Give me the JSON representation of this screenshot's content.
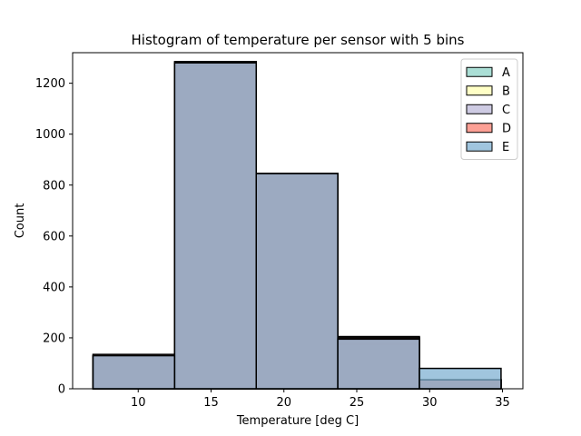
{
  "chart_data": {
    "type": "histogram",
    "title": "Histogram of temperature per sensor with 5 bins",
    "xlabel": "Temperature [deg C]",
    "ylabel": "Count",
    "xlim": [
      5.5,
      36.4
    ],
    "ylim": [
      0,
      1320
    ],
    "xticks": [
      10,
      15,
      20,
      25,
      30,
      35
    ],
    "yticks": [
      0,
      200,
      400,
      600,
      800,
      1000,
      1200
    ],
    "bin_edges": [
      6.9,
      12.5,
      18.1,
      23.7,
      29.3,
      34.9
    ],
    "grid": false,
    "legend_position": "top-right",
    "series": [
      {
        "name": "A",
        "color": "#8dd3c7",
        "values": [
          125,
          1255,
          845,
          175,
          35
        ]
      },
      {
        "name": "B",
        "color": "#ffffb3",
        "values": [
          130,
          1270,
          845,
          205,
          35
        ]
      },
      {
        "name": "C",
        "color": "#bebada",
        "values": [
          130,
          1285,
          845,
          200,
          35
        ]
      },
      {
        "name": "D",
        "color": "#fb8072",
        "values": [
          135,
          1280,
          845,
          200,
          35
        ]
      },
      {
        "name": "E",
        "color": "#80b1d3",
        "values": [
          130,
          1280,
          845,
          195,
          80
        ]
      }
    ]
  }
}
